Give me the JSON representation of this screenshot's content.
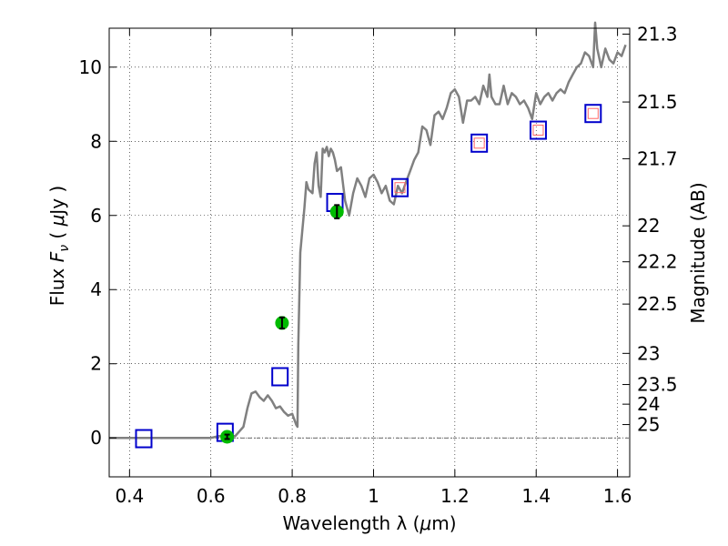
{
  "chart_data": {
    "type": "line",
    "title": "",
    "xlabel": "Wavelength  λ (μm)",
    "ylabel": "Flux  F_ν  ( μJy )",
    "ylabel_right": "Magnitude (AB)",
    "xlim": [
      0.35,
      1.63
    ],
    "ylim": [
      -1.05,
      11.05
    ],
    "grid": true,
    "x_ticks": [
      0.4,
      0.6,
      0.8,
      1.0,
      1.2,
      1.4,
      1.6
    ],
    "x_tick_labels": [
      "0.4",
      "0.6",
      "0.8",
      "1",
      "1.2",
      "1.4",
      "1.6"
    ],
    "y_ticks": [
      0,
      2,
      4,
      6,
      8,
      10
    ],
    "y_tick_labels": [
      "0",
      "2",
      "4",
      "6",
      "8",
      "10"
    ],
    "right_ticks": [
      {
        "label": "21.3",
        "flux": 10.89
      },
      {
        "label": "21.5",
        "flux": 9.06
      },
      {
        "label": "21.7",
        "flux": 7.53
      },
      {
        "label": "22",
        "flux": 5.72
      },
      {
        "label": "22.2",
        "flux": 4.75
      },
      {
        "label": "22.5",
        "flux": 3.61
      },
      {
        "label": "23",
        "flux": 2.28
      },
      {
        "label": "23.5",
        "flux": 1.44
      },
      {
        "label": "24",
        "flux": 0.91
      },
      {
        "label": "25",
        "flux": 0.36
      }
    ],
    "series": [
      {
        "kind": "spectrum",
        "color": "#808080",
        "x": [
          0.35,
          0.4,
          0.45,
          0.5,
          0.55,
          0.6,
          0.62,
          0.64,
          0.66,
          0.68,
          0.69,
          0.7,
          0.71,
          0.72,
          0.73,
          0.74,
          0.75,
          0.76,
          0.77,
          0.78,
          0.79,
          0.8,
          0.81,
          0.813,
          0.815,
          0.82,
          0.83,
          0.835,
          0.84,
          0.85,
          0.855,
          0.86,
          0.865,
          0.87,
          0.875,
          0.88,
          0.885,
          0.89,
          0.895,
          0.9,
          0.905,
          0.91,
          0.92,
          0.93,
          0.94,
          0.95,
          0.96,
          0.97,
          0.98,
          0.99,
          1.0,
          1.01,
          1.02,
          1.03,
          1.04,
          1.05,
          1.06,
          1.07,
          1.08,
          1.09,
          1.1,
          1.11,
          1.12,
          1.13,
          1.14,
          1.15,
          1.16,
          1.17,
          1.18,
          1.19,
          1.2,
          1.21,
          1.22,
          1.23,
          1.24,
          1.25,
          1.26,
          1.27,
          1.28,
          1.285,
          1.29,
          1.3,
          1.31,
          1.32,
          1.33,
          1.34,
          1.35,
          1.36,
          1.37,
          1.38,
          1.39,
          1.4,
          1.41,
          1.42,
          1.43,
          1.44,
          1.45,
          1.46,
          1.47,
          1.48,
          1.49,
          1.5,
          1.51,
          1.52,
          1.53,
          1.54,
          1.545,
          1.55,
          1.56,
          1.57,
          1.58,
          1.59,
          1.6,
          1.61,
          1.62
        ],
        "y": [
          0.0,
          0.0,
          0.0,
          0.0,
          0.0,
          0.0,
          0.05,
          0.05,
          0.05,
          0.3,
          0.8,
          1.2,
          1.25,
          1.1,
          1.0,
          1.15,
          1.0,
          0.8,
          0.85,
          0.7,
          0.6,
          0.65,
          0.35,
          0.3,
          2.5,
          5.0,
          6.2,
          6.9,
          6.7,
          6.6,
          7.4,
          7.7,
          6.8,
          6.5,
          7.8,
          7.7,
          7.85,
          7.6,
          7.8,
          7.7,
          7.5,
          7.2,
          7.3,
          6.4,
          6.0,
          6.6,
          7.0,
          6.8,
          6.5,
          7.0,
          7.1,
          6.9,
          6.6,
          6.8,
          6.4,
          6.3,
          6.8,
          6.6,
          6.9,
          7.2,
          7.5,
          7.7,
          8.4,
          8.3,
          7.9,
          8.7,
          8.8,
          8.6,
          8.9,
          9.3,
          9.4,
          9.2,
          8.5,
          9.1,
          9.1,
          9.2,
          9.0,
          9.5,
          9.2,
          9.8,
          9.2,
          9.0,
          9.0,
          9.5,
          9.0,
          9.3,
          9.2,
          9.0,
          9.1,
          8.9,
          8.6,
          9.3,
          9.0,
          9.2,
          9.3,
          9.1,
          9.3,
          9.4,
          9.3,
          9.6,
          9.8,
          10.0,
          10.1,
          10.4,
          10.3,
          10.0,
          11.2,
          10.5,
          10.0,
          10.5,
          10.2,
          10.1,
          10.4,
          10.3,
          10.6
        ]
      },
      {
        "kind": "photometry",
        "marker": "circle",
        "color": "#00bb00",
        "points": [
          {
            "x": 0.64,
            "y": 0.03,
            "err": 0.06
          },
          {
            "x": 0.775,
            "y": 3.1,
            "err": 0.15
          },
          {
            "x": 0.91,
            "y": 6.1,
            "err": 0.18
          }
        ]
      },
      {
        "kind": "model",
        "marker": "square",
        "color": "#0000cc",
        "points": [
          {
            "x": 0.435,
            "y": -0.02
          },
          {
            "x": 0.635,
            "y": 0.15
          },
          {
            "x": 0.77,
            "y": 1.65
          },
          {
            "x": 0.905,
            "y": 6.35
          },
          {
            "x": 1.065,
            "y": 6.75
          },
          {
            "x": 1.26,
            "y": 7.95
          },
          {
            "x": 1.405,
            "y": 8.3
          },
          {
            "x": 1.54,
            "y": 8.75
          }
        ]
      },
      {
        "kind": "model-inner",
        "marker": "square",
        "color": "#ff6666",
        "points": [
          {
            "x": 1.065,
            "y": 6.75
          },
          {
            "x": 1.26,
            "y": 7.95
          },
          {
            "x": 1.405,
            "y": 8.3
          },
          {
            "x": 1.54,
            "y": 8.75
          }
        ]
      }
    ]
  }
}
